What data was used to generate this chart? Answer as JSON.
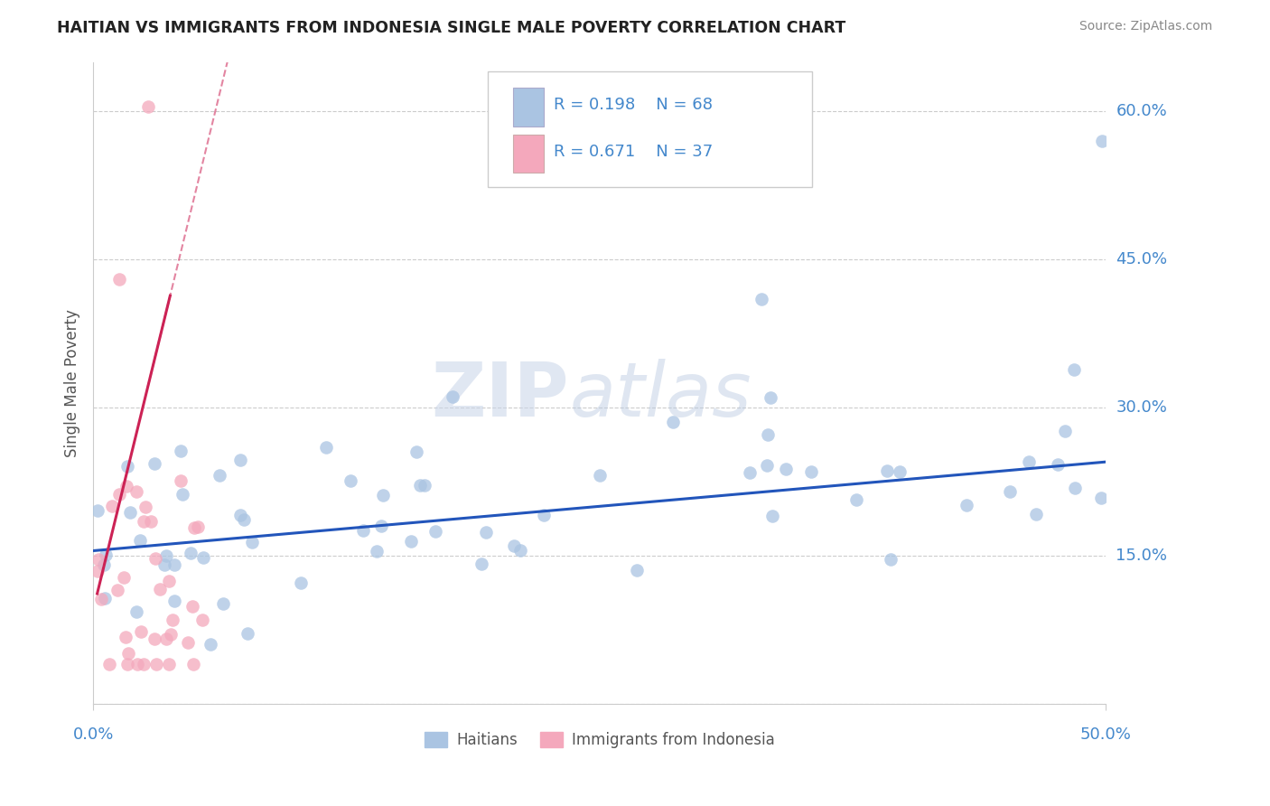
{
  "title": "HAITIAN VS IMMIGRANTS FROM INDONESIA SINGLE MALE POVERTY CORRELATION CHART",
  "source": "Source: ZipAtlas.com",
  "ylabel": "Single Male Poverty",
  "y_ticks": [
    0.0,
    0.15,
    0.3,
    0.45,
    0.6
  ],
  "y_tick_labels": [
    "",
    "15.0%",
    "30.0%",
    "45.0%",
    "60.0%"
  ],
  "x_range": [
    0.0,
    0.5
  ],
  "y_range": [
    0.0,
    0.65
  ],
  "legend_r1": "R = 0.198",
  "legend_n1": "N = 68",
  "legend_r2": "R = 0.671",
  "legend_n2": "N = 37",
  "haitians_color": "#aac4e2",
  "indonesia_color": "#f4a8bc",
  "haitians_line_color": "#2255bb",
  "indonesia_line_color": "#cc2255",
  "watermark_zip": "ZIP",
  "watermark_atlas": "atlas",
  "background_color": "#ffffff",
  "title_color": "#222222",
  "source_color": "#888888",
  "tick_color": "#4488cc",
  "ylabel_color": "#555555",
  "grid_color": "#cccccc",
  "legend_text_color": "#4488cc"
}
